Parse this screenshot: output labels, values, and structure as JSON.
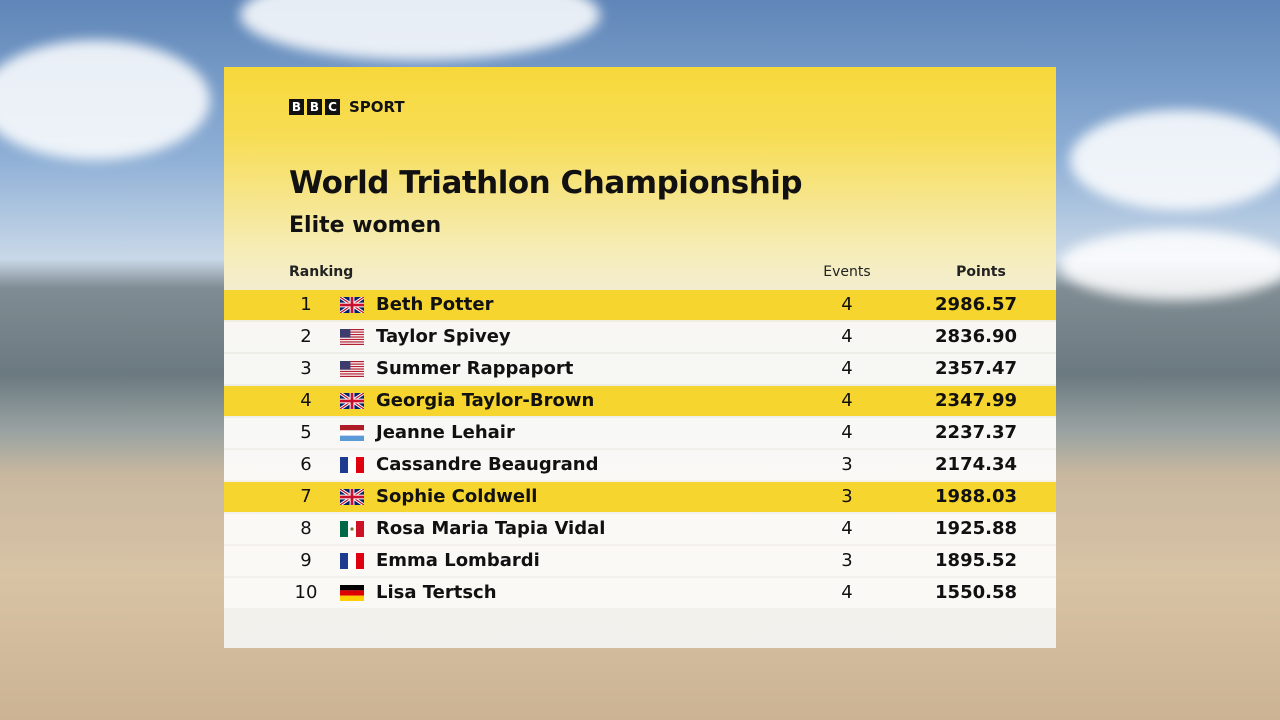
{
  "header": {
    "logo": [
      "B",
      "B",
      "C"
    ],
    "brand": "SPORT"
  },
  "title": "World Triathlon Championship",
  "subtitle": "Elite women",
  "table": {
    "columns": [
      "Ranking",
      "Events",
      "Points"
    ],
    "rows": [
      [
        "1",
        "Beth Potter",
        "4",
        "2986.57"
      ],
      [
        "2",
        "Taylor Spivey",
        "4",
        "2836.90"
      ],
      [
        "3",
        "Summer Rappaport",
        "4",
        "2357.47"
      ],
      [
        "4",
        "Georgia Taylor-Brown",
        "4",
        "2347.99"
      ],
      [
        "5",
        "Jeanne Lehair",
        "4",
        "2237.37"
      ],
      [
        "6",
        "Cassandre Beaugrand",
        "3",
        "2174.34"
      ],
      [
        "7",
        "Sophie Coldwell",
        "3",
        "1988.03"
      ],
      [
        "8",
        "Rosa Maria Tapia Vidal",
        "4",
        "1925.88"
      ],
      [
        "9",
        "Emma Lombardi",
        "3",
        "1895.52"
      ],
      [
        "10",
        "Lisa Tertsch",
        "4",
        "1550.58"
      ]
    ]
  }
}
